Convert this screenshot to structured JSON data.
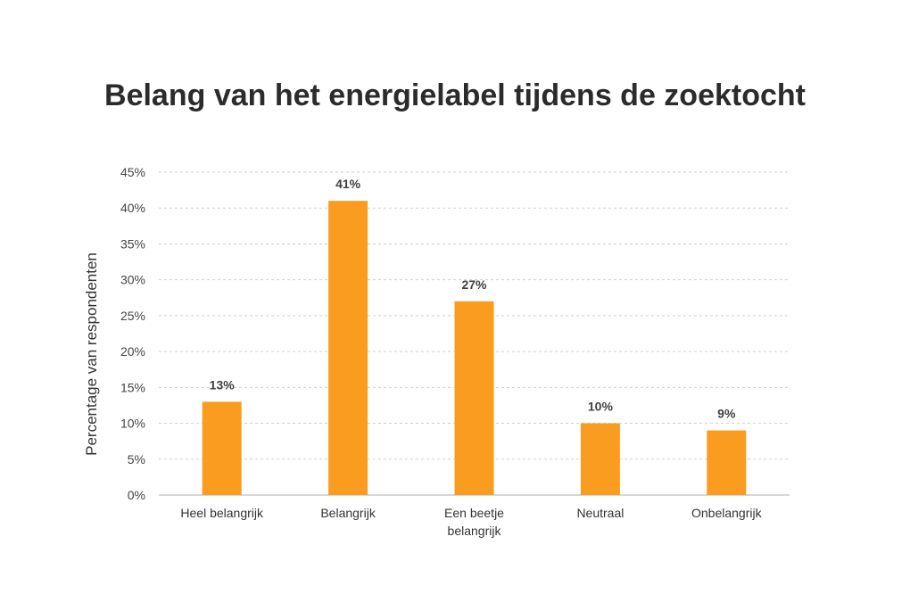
{
  "chart_data": {
    "type": "bar",
    "title": "Belang van het energielabel tijdens de zoektocht",
    "xlabel": "",
    "ylabel": "Percentage van respondenten",
    "categories": [
      [
        "Heel belangrijk"
      ],
      [
        "Belangrijk"
      ],
      [
        "Een beetje",
        "belangrijk"
      ],
      [
        "Neutraal"
      ],
      [
        "Onbelangrijk"
      ]
    ],
    "values": [
      13,
      41,
      27,
      10,
      9
    ],
    "data_labels": [
      "13%",
      "41%",
      "27%",
      "10%",
      "9%"
    ],
    "ylim": [
      0,
      45
    ],
    "yticks": [
      0,
      5,
      10,
      15,
      20,
      25,
      30,
      35,
      40,
      45
    ],
    "ytick_labels": [
      "0%",
      "5%",
      "10%",
      "15%",
      "20%",
      "25%",
      "30%",
      "35%",
      "40%",
      "45%"
    ],
    "grid": true,
    "bar_color": "#f99c1f",
    "grid_color": "#cfcfcf",
    "axis_color": "#bfbfbf"
  }
}
